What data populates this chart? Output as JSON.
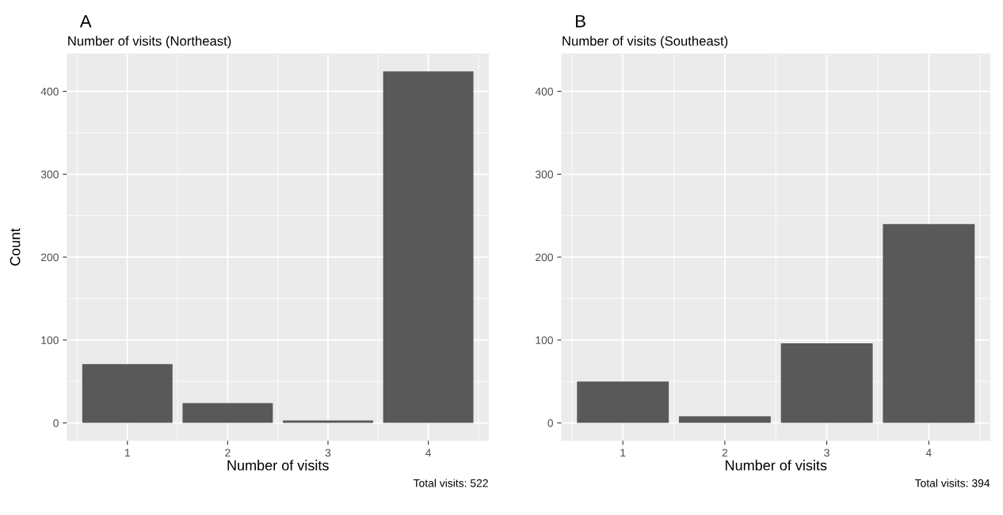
{
  "chart_data": [
    {
      "type": "bar",
      "title": "A",
      "subtitle": "Number of visits (Northeast)",
      "xlabel": "Number of visits",
      "ylabel": "Count",
      "categories": [
        "1",
        "2",
        "3",
        "4"
      ],
      "values": [
        71,
        24,
        3,
        424
      ],
      "color": "#595959",
      "ylim": [
        -21,
        445
      ],
      "yticks": [
        0,
        100,
        200,
        300,
        400
      ],
      "grid": true,
      "annotations": [
        "Total visits: 522"
      ]
    },
    {
      "type": "bar",
      "title": "B",
      "subtitle": "Number of visits (Southeast)",
      "xlabel": "Number of visits",
      "categories": [
        "1",
        "2",
        "3",
        "4"
      ],
      "values": [
        50,
        8,
        96,
        240
      ],
      "color": "#595959",
      "ylim": [
        -21,
        445
      ],
      "yticks": [
        0,
        100,
        200,
        300,
        400
      ],
      "grid": true,
      "annotations": [
        "Total visits: 394"
      ]
    }
  ]
}
